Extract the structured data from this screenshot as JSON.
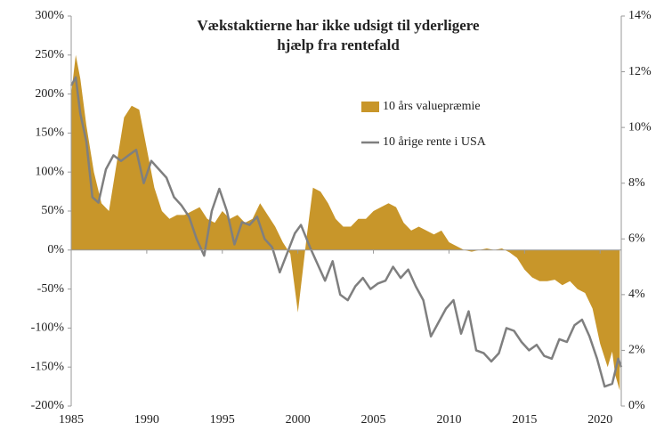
{
  "chart_data": {
    "type": "area-line",
    "title": [
      "Vækstaktierne har ikke udsigt til yderligere",
      "hjælp fra rentefald"
    ],
    "xlim": [
      1985,
      2021.4
    ],
    "xticks": [
      1985,
      1990,
      1995,
      2000,
      2005,
      2010,
      2015,
      2020
    ],
    "ylim": [
      -200,
      300
    ],
    "yticks": [
      {
        "value": -200,
        "label": "-200%"
      },
      {
        "value": -150,
        "label": "-150%"
      },
      {
        "value": -100,
        "label": "-100%"
      },
      {
        "value": -50,
        "label": "-50%"
      },
      {
        "value": 0,
        "label": "0%"
      },
      {
        "value": 50,
        "label": "50%"
      },
      {
        "value": 100,
        "label": "100%"
      },
      {
        "value": 150,
        "label": "150%"
      },
      {
        "value": 200,
        "label": "200%"
      },
      {
        "value": 250,
        "label": "250%"
      },
      {
        "value": 300,
        "label": "300%"
      }
    ],
    "y2lim": [
      0,
      14
    ],
    "y2ticks": [
      {
        "value": 0,
        "label": "0%"
      },
      {
        "value": 2,
        "label": "2%"
      },
      {
        "value": 4,
        "label": "4%"
      },
      {
        "value": 6,
        "label": "6%"
      },
      {
        "value": 8,
        "label": "8%"
      },
      {
        "value": 10,
        "label": "10%"
      },
      {
        "value": 12,
        "label": "12%"
      },
      {
        "value": 14,
        "label": "14%"
      }
    ],
    "series": [
      {
        "name": "10 års valuepræmie",
        "color": "#c8962a",
        "kind": "area",
        "x": [
          1985,
          1985.3,
          1985.6,
          1986,
          1986.5,
          1987,
          1987.5,
          1988,
          1988.5,
          1989,
          1989.5,
          1990,
          1990.5,
          1991,
          1991.5,
          1992,
          1992.5,
          1993,
          1993.5,
          1994,
          1994.5,
          1995,
          1995.5,
          1996,
          1996.5,
          1997,
          1997.5,
          1998,
          1998.5,
          1999,
          1999.5,
          2000,
          2000.3,
          2000.6,
          2001,
          2001.5,
          2002,
          2002.5,
          2003,
          2003.5,
          2004,
          2004.5,
          2005,
          2005.5,
          2006,
          2006.5,
          2007,
          2007.5,
          2008,
          2008.5,
          2009,
          2009.5,
          2010,
          2010.5,
          2011,
          2011.5,
          2012,
          2012.5,
          2013,
          2013.5,
          2014,
          2014.5,
          2015,
          2015.5,
          2016,
          2016.5,
          2017,
          2017.5,
          2018,
          2018.5,
          2019,
          2019.5,
          2020,
          2020.5,
          2020.8,
          2021,
          2021.3
        ],
        "values": [
          200,
          250,
          220,
          160,
          100,
          60,
          50,
          110,
          170,
          185,
          180,
          130,
          80,
          50,
          40,
          45,
          45,
          50,
          55,
          40,
          35,
          50,
          40,
          45,
          35,
          40,
          60,
          45,
          30,
          10,
          -5,
          -80,
          -30,
          20,
          80,
          75,
          60,
          40,
          30,
          30,
          40,
          40,
          50,
          55,
          60,
          55,
          35,
          25,
          30,
          25,
          20,
          25,
          10,
          5,
          0,
          -2,
          0,
          2,
          0,
          2,
          -3,
          -10,
          -25,
          -35,
          -40,
          -40,
          -38,
          -45,
          -40,
          -50,
          -55,
          -75,
          -120,
          -150,
          -130,
          -160,
          -180
        ]
      },
      {
        "name": "10 årige rente i USA",
        "color": "#7f7f7f",
        "kind": "line",
        "axis": "y2",
        "x": [
          1985,
          1985.3,
          1985.6,
          1986,
          1986.4,
          1986.8,
          1987.3,
          1987.8,
          1988.3,
          1988.8,
          1989.3,
          1989.8,
          1990.3,
          1990.8,
          1991.3,
          1991.8,
          1992.3,
          1992.8,
          1993.3,
          1993.8,
          1994.3,
          1994.8,
          1995.3,
          1995.8,
          1996.3,
          1996.8,
          1997.3,
          1997.8,
          1998.3,
          1998.8,
          1999.3,
          1999.8,
          2000.2,
          2000.8,
          2001.3,
          2001.8,
          2002.3,
          2002.8,
          2003.3,
          2003.8,
          2004.3,
          2004.8,
          2005.3,
          2005.8,
          2006.3,
          2006.8,
          2007.3,
          2007.8,
          2008.3,
          2008.8,
          2009.3,
          2009.8,
          2010.3,
          2010.8,
          2011.3,
          2011.8,
          2012.3,
          2012.8,
          2013.3,
          2013.8,
          2014.3,
          2014.8,
          2015.3,
          2015.8,
          2016.3,
          2016.8,
          2017.3,
          2017.8,
          2018.3,
          2018.8,
          2019.3,
          2019.8,
          2020.3,
          2020.8,
          2021.2,
          2021.4
        ],
        "values": [
          11.5,
          11.8,
          10.5,
          9.5,
          7.5,
          7.3,
          8.5,
          9.0,
          8.8,
          9.0,
          9.2,
          8.0,
          8.8,
          8.5,
          8.2,
          7.5,
          7.2,
          6.8,
          6.0,
          5.4,
          7.0,
          7.8,
          7.0,
          5.8,
          6.6,
          6.5,
          6.8,
          6.0,
          5.7,
          4.8,
          5.5,
          6.2,
          6.5,
          5.7,
          5.1,
          4.5,
          5.2,
          4.0,
          3.8,
          4.3,
          4.6,
          4.2,
          4.4,
          4.5,
          5.0,
          4.6,
          4.9,
          4.3,
          3.8,
          2.5,
          3.0,
          3.5,
          3.8,
          2.6,
          3.4,
          2.0,
          1.9,
          1.6,
          1.9,
          2.8,
          2.7,
          2.3,
          2.0,
          2.2,
          1.8,
          1.7,
          2.4,
          2.3,
          2.9,
          3.1,
          2.5,
          1.7,
          0.7,
          0.8,
          1.7,
          1.4
        ]
      }
    ]
  }
}
